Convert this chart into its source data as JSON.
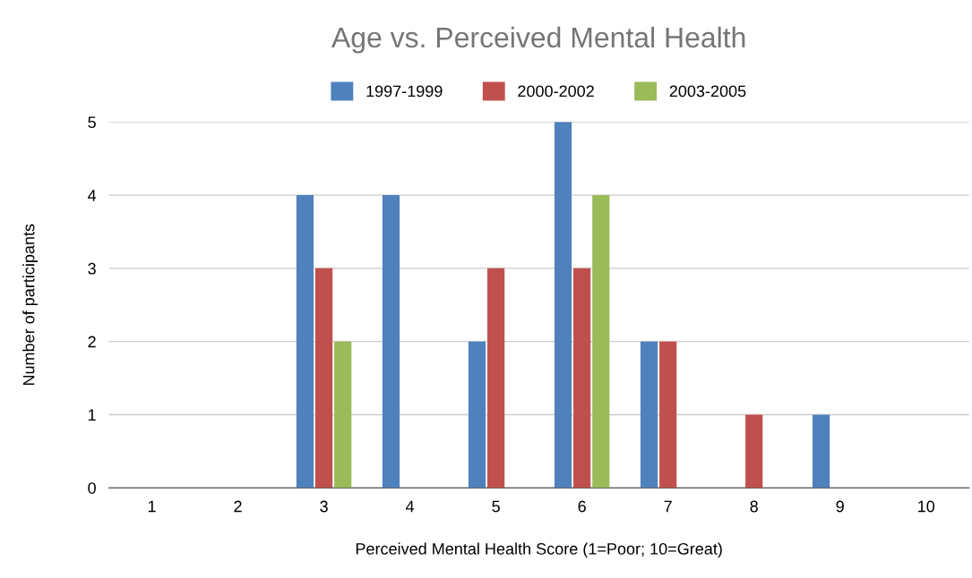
{
  "chart_data": {
    "type": "bar",
    "title": "Age vs. Perceived Mental Health",
    "xlabel": "Perceived Mental Health Score (1=Poor; 10=Great)",
    "ylabel": "Number of participants",
    "categories": [
      "1",
      "2",
      "3",
      "4",
      "5",
      "6",
      "7",
      "8",
      "9",
      "10"
    ],
    "series": [
      {
        "name": "1997-1999",
        "color": "#4f81bd",
        "values": [
          0,
          0,
          4,
          4,
          2,
          5,
          2,
          0,
          1,
          0
        ]
      },
      {
        "name": "2000-2002",
        "color": "#c0504d",
        "values": [
          0,
          0,
          3,
          0,
          3,
          3,
          2,
          1,
          0,
          0
        ]
      },
      {
        "name": "2003-2005",
        "color": "#9bbb59",
        "values": [
          0,
          0,
          2,
          0,
          0,
          4,
          0,
          0,
          0,
          0
        ]
      }
    ],
    "ylim": [
      0,
      5
    ],
    "yticks": [
      0,
      1,
      2,
      3,
      4,
      5
    ],
    "grid": "y",
    "legend": "top"
  }
}
